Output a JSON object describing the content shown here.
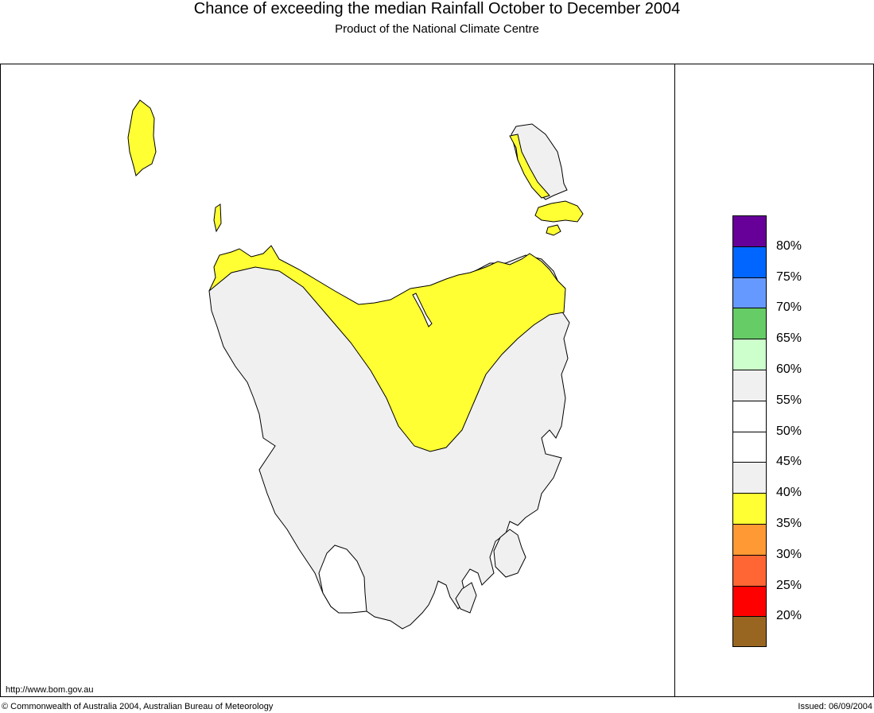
{
  "title": "Chance of exceeding the median Rainfall October to December 2004",
  "subtitle": "Product of the National Climate Centre",
  "url": "http://www.bom.gov.au",
  "copyright": "© Commonwealth of Australia 2004, Australian Bureau of Meteorology",
  "issued": "Issued: 06/09/2004",
  "legend": {
    "swatches": [
      {
        "color": "#660099"
      },
      {
        "color": "#0066ff"
      },
      {
        "color": "#6699ff"
      },
      {
        "color": "#66cc66"
      },
      {
        "color": "#ccffcc"
      },
      {
        "color": "#f0f0f0"
      },
      {
        "color": "#ffffff"
      },
      {
        "color": "#ffffff"
      },
      {
        "color": "#f0f0f0"
      },
      {
        "color": "#ffff33"
      },
      {
        "color": "#ff9933"
      },
      {
        "color": "#ff6633"
      },
      {
        "color": "#ff0000"
      },
      {
        "color": "#996622"
      }
    ],
    "labels": [
      "80%",
      "75%",
      "70%",
      "65%",
      "60%",
      "55%",
      "50%",
      "45%",
      "40%",
      "35%",
      "30%",
      "25%",
      "20%"
    ]
  },
  "map_colors": {
    "grey_40_60": "#f0f0f0",
    "yellow_35_40": "#ffff33",
    "white_45_55": "#ffffff"
  }
}
